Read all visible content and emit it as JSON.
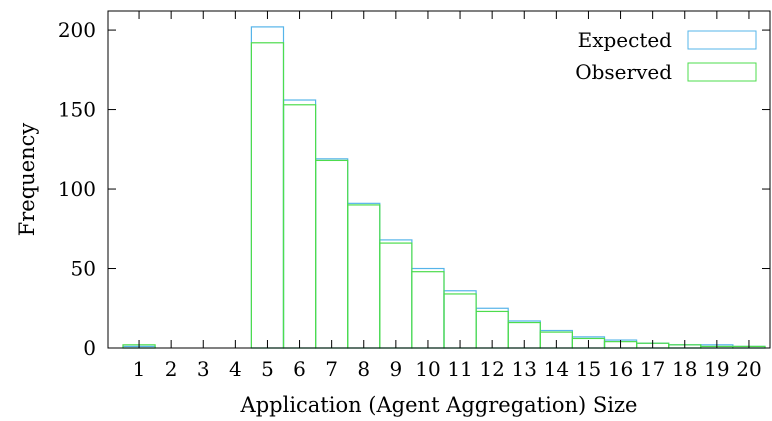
{
  "chart_data": {
    "type": "bar",
    "categories": [
      "1",
      "2",
      "3",
      "4",
      "5",
      "6",
      "7",
      "8",
      "9",
      "10",
      "11",
      "12",
      "13",
      "14",
      "15",
      "16",
      "17",
      "18",
      "19",
      "20"
    ],
    "series": [
      {
        "name": "Expected",
        "color": "#56b4e9",
        "values": [
          1,
          0,
          0,
          0,
          202,
          156,
          119,
          91,
          68,
          50,
          36,
          25,
          17,
          11,
          7,
          5,
          3,
          2,
          2,
          1
        ]
      },
      {
        "name": "Observed",
        "color": "#4ddc4d",
        "values": [
          2,
          0,
          0,
          0,
          192,
          153,
          118,
          90,
          66,
          48,
          34,
          23,
          16,
          10,
          6,
          4,
          3,
          2,
          1,
          1
        ]
      }
    ],
    "title": "",
    "xlabel": "Application (Agent Aggregation) Size",
    "ylabel": "Frequency",
    "ylim": [
      0,
      212
    ],
    "yticks": [
      0,
      50,
      100,
      150,
      200
    ],
    "grid": false,
    "legend_position": "top-right"
  }
}
